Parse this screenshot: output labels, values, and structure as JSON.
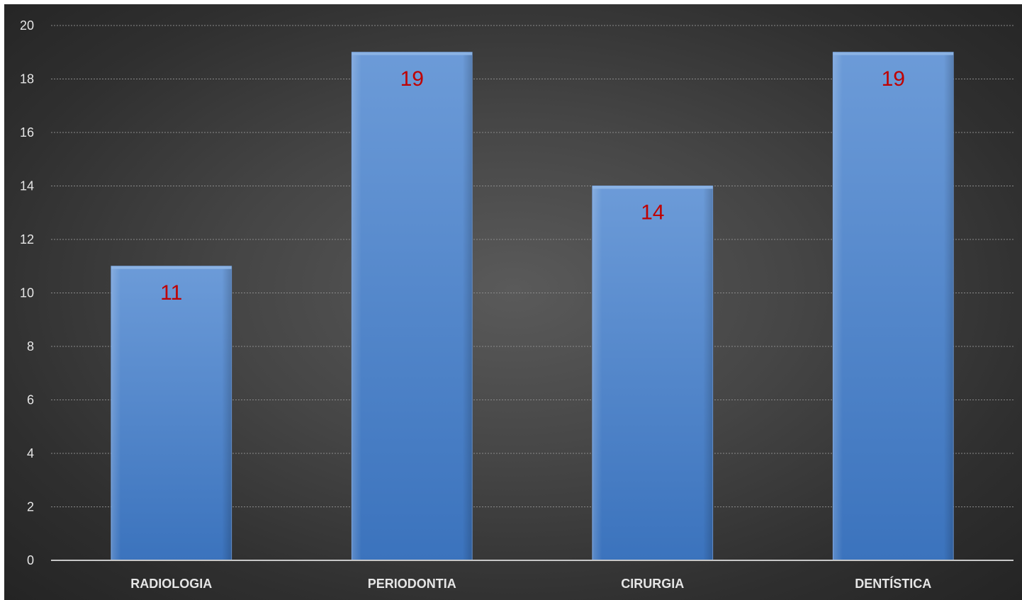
{
  "chart_data": {
    "type": "bar",
    "title": "",
    "xlabel": "",
    "ylabel": "",
    "categories": [
      "RADIOLOGIA",
      "PERIODONTIA",
      "CIRURGIA",
      "DENTÍSTICA"
    ],
    "series": [
      {
        "values": [
          11,
          19,
          14,
          19
        ]
      }
    ],
    "ylim": [
      0,
      20
    ],
    "yticks": [
      0,
      2,
      4,
      6,
      8,
      10,
      12,
      14,
      16,
      18,
      20
    ],
    "grid": true,
    "legend": "none",
    "data_labels": true,
    "colors": {
      "bar": "#4f86cb",
      "data_label": "#c00000",
      "text": "#e6e6e6",
      "gridline": "#8a8a8a"
    }
  }
}
